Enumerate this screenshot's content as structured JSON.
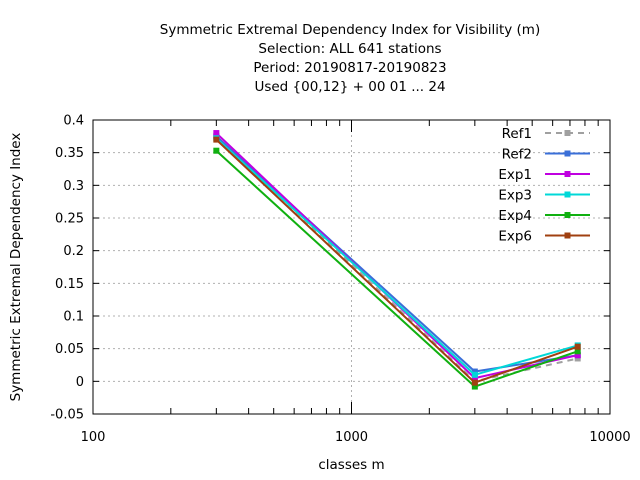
{
  "chart_data": {
    "type": "line",
    "title_lines": [
      "Symmetric Extremal Dependency Index  for Visibility (m)",
      "Selection: ALL    641 stations",
      "Period: 20190817-20190823",
      "Used {00,12} + 00 01 ... 24"
    ],
    "xlabel": "classes m",
    "ylabel": "Symmetric Extremal Dependency Index",
    "xscale": "log",
    "xlim": [
      100,
      10000
    ],
    "ylim": [
      -0.05,
      0.4
    ],
    "xticks": [
      {
        "value": 100,
        "label": "100"
      },
      {
        "value": 1000,
        "label": "1000"
      },
      {
        "value": 10000,
        "label": "10000"
      }
    ],
    "yticks": [
      {
        "value": -0.05,
        "label": "-0.05"
      },
      {
        "value": 0,
        "label": "0"
      },
      {
        "value": 0.05,
        "label": "0.05"
      },
      {
        "value": 0.1,
        "label": "0.1"
      },
      {
        "value": 0.15,
        "label": "0.15"
      },
      {
        "value": 0.2,
        "label": "0.2"
      },
      {
        "value": 0.25,
        "label": "0.25"
      },
      {
        "value": 0.3,
        "label": "0.3"
      },
      {
        "value": 0.35,
        "label": "0.35"
      },
      {
        "value": 0.4,
        "label": "0.4"
      }
    ],
    "grid": true,
    "legend_position": "top-right",
    "x": [
      300,
      3000,
      7500
    ],
    "series": [
      {
        "name": "Ref1",
        "color": "#a0a0a0",
        "dashed": true,
        "values": [
          0.375,
          0.0,
          0.035
        ]
      },
      {
        "name": "Ref2",
        "color": "#3a6fd8",
        "dashed": false,
        "values": [
          0.375,
          0.015,
          0.04
        ]
      },
      {
        "name": "Exp1",
        "color": "#c000e0",
        "dashed": false,
        "values": [
          0.38,
          0.005,
          0.04
        ]
      },
      {
        "name": "Exp3",
        "color": "#00d8d8",
        "dashed": false,
        "values": [
          0.372,
          0.01,
          0.055
        ]
      },
      {
        "name": "Exp4",
        "color": "#10b010",
        "dashed": false,
        "values": [
          0.353,
          -0.008,
          0.046
        ]
      },
      {
        "name": "Exp6",
        "color": "#a04010",
        "dashed": false,
        "values": [
          0.37,
          -0.002,
          0.053
        ]
      }
    ]
  }
}
